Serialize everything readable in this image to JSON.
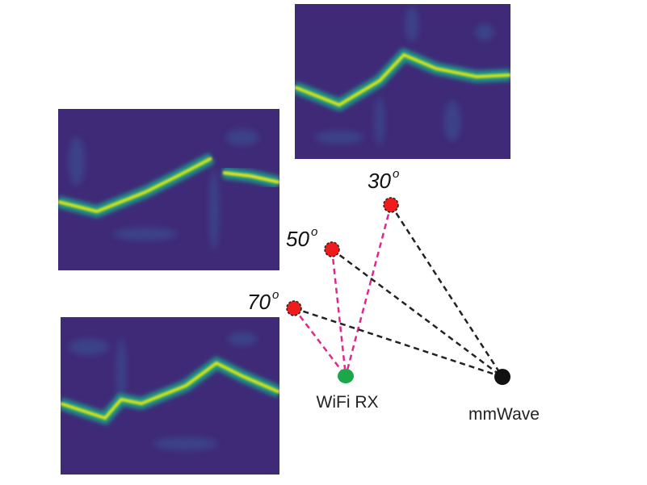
{
  "angles": [
    {
      "value": "30",
      "sup": "o"
    },
    {
      "value": "50",
      "sup": "o"
    },
    {
      "value": "70",
      "sup": "o"
    }
  ],
  "receivers": [
    {
      "label": "WiFi RX"
    },
    {
      "label": "mmWave"
    }
  ]
}
